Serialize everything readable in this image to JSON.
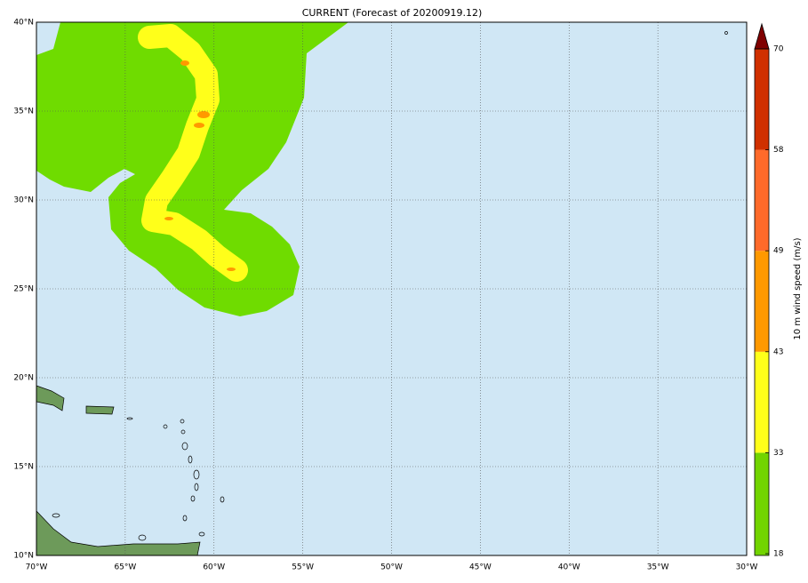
{
  "title": "CURRENT (Forecast of 20200919.12)",
  "map": {
    "lon_labels": [
      "70°W",
      "65°W",
      "60°W",
      "55°W",
      "50°W",
      "45°W",
      "40°W",
      "35°W",
      "30°W"
    ],
    "lat_labels": [
      "10°N",
      "15°N",
      "20°N",
      "25°N",
      "30°N",
      "35°N",
      "40°N"
    ]
  },
  "colorbar": {
    "label": "10 m wind speed (m/s)",
    "ticks": [
      18,
      33,
      43,
      49,
      58,
      70
    ],
    "colors": [
      "#72d400",
      "#ffff1a",
      "#ff9900",
      "#ff6a2a",
      "#d03000"
    ],
    "extend_color": "#800000"
  }
}
